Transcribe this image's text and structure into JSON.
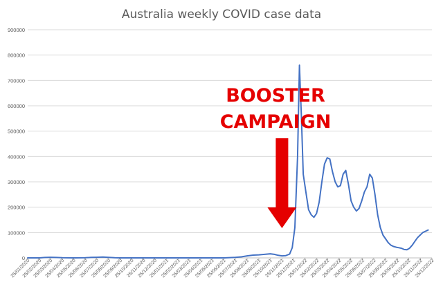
{
  "chart_data": {
    "type": "line",
    "title": "Australia weekly COVID case data",
    "xlabel": "",
    "ylabel": "",
    "ylim": [
      0,
      900000
    ],
    "yticks": [
      0,
      100000,
      200000,
      300000,
      400000,
      500000,
      600000,
      700000,
      800000,
      900000
    ],
    "grid": true,
    "legend": "none",
    "line_color": "#4472c4",
    "annotation": {
      "lines": [
        "BOOSTER",
        "CAMPAIGN"
      ],
      "color": "#e50000",
      "arrow_target_x": "25/11/2021"
    },
    "x_tick_labels": [
      "25/01/2020",
      "25/02/2020",
      "25/03/2020",
      "25/04/2020",
      "25/05/2020",
      "25/06/2020",
      "25/07/2020",
      "25/08/2020",
      "25/09/2020",
      "25/10/2020",
      "25/11/2020",
      "25/12/2020",
      "25/01/2021",
      "25/02/2021",
      "25/03/2021",
      "25/04/2021",
      "25/05/2021",
      "25/06/2021",
      "25/07/2021",
      "25/08/2021",
      "25/09/2021",
      "25/10/2021",
      "25/11/2021",
      "25/12/2021",
      "25/01/2022",
      "25/02/2022",
      "25/03/2022",
      "25/04/2022",
      "25/05/2022",
      "25/06/2022",
      "25/07/2022",
      "25/08/2022",
      "25/09/2022",
      "25/10/2022",
      "25/11/2022",
      "25/12/2022"
    ],
    "series": [
      {
        "points": [
          [
            "25/01/2020",
            0
          ],
          [
            "25/02/2020",
            0
          ],
          [
            "10/03/2020",
            1500
          ],
          [
            "25/03/2020",
            2500
          ],
          [
            "10/04/2020",
            1500
          ],
          [
            "25/04/2020",
            500
          ],
          [
            "25/05/2020",
            0
          ],
          [
            "25/06/2020",
            500
          ],
          [
            "10/07/2020",
            2000
          ],
          [
            "25/07/2020",
            2500
          ],
          [
            "10/08/2020",
            3500
          ],
          [
            "25/08/2020",
            2000
          ],
          [
            "10/09/2020",
            500
          ],
          [
            "25/09/2020",
            0
          ],
          [
            "25/10/2020",
            0
          ],
          [
            "25/11/2020",
            0
          ],
          [
            "25/12/2020",
            0
          ],
          [
            "25/01/2021",
            0
          ],
          [
            "25/02/2021",
            0
          ],
          [
            "25/03/2021",
            0
          ],
          [
            "25/04/2021",
            0
          ],
          [
            "25/05/2021",
            0
          ],
          [
            "25/06/2021",
            0
          ],
          [
            "10/07/2021",
            1000
          ],
          [
            "25/07/2021",
            2000
          ],
          [
            "10/08/2021",
            4000
          ],
          [
            "25/08/2021",
            8000
          ],
          [
            "10/09/2021",
            11000
          ],
          [
            "25/09/2021",
            12000
          ],
          [
            "10/10/2021",
            14000
          ],
          [
            "25/10/2021",
            16000
          ],
          [
            "05/11/2021",
            14000
          ],
          [
            "15/11/2021",
            10000
          ],
          [
            "25/11/2021",
            8000
          ],
          [
            "05/12/2021",
            9000
          ],
          [
            "15/12/2021",
            15000
          ],
          [
            "22/12/2021",
            40000
          ],
          [
            "29/12/2021",
            120000
          ],
          [
            "05/01/2022",
            400000
          ],
          [
            "10/01/2022",
            760000
          ],
          [
            "15/01/2022",
            560000
          ],
          [
            "20/01/2022",
            330000
          ],
          [
            "27/01/2022",
            260000
          ],
          [
            "03/02/2022",
            190000
          ],
          [
            "10/02/2022",
            170000
          ],
          [
            "17/02/2022",
            160000
          ],
          [
            "24/02/2022",
            175000
          ],
          [
            "03/03/2022",
            220000
          ],
          [
            "10/03/2022",
            300000
          ],
          [
            "17/03/2022",
            370000
          ],
          [
            "24/03/2022",
            395000
          ],
          [
            "31/03/2022",
            390000
          ],
          [
            "07/04/2022",
            340000
          ],
          [
            "14/04/2022",
            300000
          ],
          [
            "21/04/2022",
            280000
          ],
          [
            "28/04/2022",
            285000
          ],
          [
            "05/05/2022",
            330000
          ],
          [
            "12/05/2022",
            345000
          ],
          [
            "19/05/2022",
            290000
          ],
          [
            "26/05/2022",
            225000
          ],
          [
            "02/06/2022",
            200000
          ],
          [
            "09/06/2022",
            185000
          ],
          [
            "16/06/2022",
            195000
          ],
          [
            "23/06/2022",
            225000
          ],
          [
            "30/06/2022",
            260000
          ],
          [
            "07/07/2022",
            280000
          ],
          [
            "14/07/2022",
            330000
          ],
          [
            "21/07/2022",
            315000
          ],
          [
            "28/07/2022",
            250000
          ],
          [
            "04/08/2022",
            170000
          ],
          [
            "11/08/2022",
            120000
          ],
          [
            "18/08/2022",
            90000
          ],
          [
            "25/08/2022",
            75000
          ],
          [
            "01/09/2022",
            60000
          ],
          [
            "08/09/2022",
            50000
          ],
          [
            "15/09/2022",
            45000
          ],
          [
            "22/09/2022",
            42000
          ],
          [
            "29/09/2022",
            40000
          ],
          [
            "06/10/2022",
            38000
          ],
          [
            "13/10/2022",
            33000
          ],
          [
            "20/10/2022",
            32000
          ],
          [
            "27/10/2022",
            38000
          ],
          [
            "03/11/2022",
            50000
          ],
          [
            "10/11/2022",
            65000
          ],
          [
            "17/11/2022",
            80000
          ],
          [
            "24/11/2022",
            90000
          ],
          [
            "01/12/2022",
            100000
          ],
          [
            "08/12/2022",
            105000
          ],
          [
            "15/12/2022",
            110000
          ]
        ]
      }
    ]
  }
}
